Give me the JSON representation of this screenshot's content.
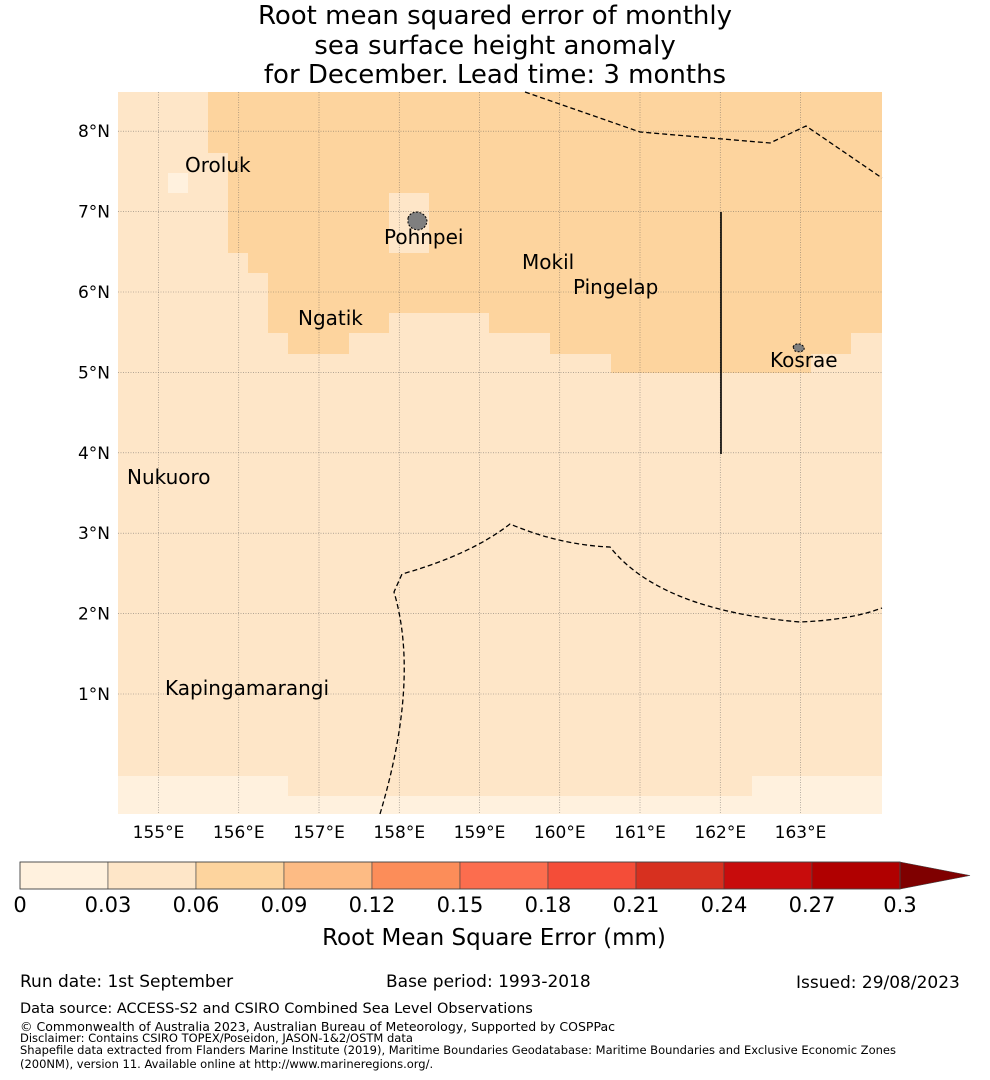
{
  "title": {
    "line1": "Root mean squared error of monthly",
    "line2": "sea surface height anomaly",
    "line3": "for December. Lead time: 3 months"
  },
  "map": {
    "lon_labels": [
      "155°E",
      "156°E",
      "157°E",
      "158°E",
      "159°E",
      "160°E",
      "161°E",
      "162°E",
      "163°E"
    ],
    "lat_labels": [
      "1°N",
      "2°N",
      "3°N",
      "4°N",
      "5°N",
      "6°N",
      "7°N",
      "8°N"
    ],
    "places": {
      "oroluk": "Oroluk",
      "pohnpei": "Pohnpei",
      "mokil": "Mokil",
      "pingelap": "Pingelap",
      "ngatik": "Ngatik",
      "kosrae": "Kosrae",
      "nukuoro": "Nukuoro",
      "kapingamarangi": "Kapingamarangi"
    },
    "colors": {
      "bin_0_003": "#fff1de",
      "bin_003_006": "#fee6c8",
      "bin_006_009": "#fdd49e",
      "land": "#7f7f7f"
    }
  },
  "colorbar": {
    "ticks": [
      "0",
      "0.03",
      "0.06",
      "0.09",
      "0.12",
      "0.15",
      "0.18",
      "0.21",
      "0.24",
      "0.27",
      "0.3"
    ],
    "colors": [
      "#fff1de",
      "#fee6c8",
      "#fdd49e",
      "#fdbb84",
      "#fc8d59",
      "#fc6d4e",
      "#f44d38",
      "#d7301f",
      "#c80c0c",
      "#b00000"
    ],
    "extend_color": "#7f0000",
    "label": "Root Mean Square Error (mm)"
  },
  "info": {
    "run_date": "Run date: 1st September",
    "base_period": "Base period: 1993-2018",
    "issued": "Issued: 29/08/2023"
  },
  "footer": {
    "data_source": "Data source: ACCESS-S2 and CSIRO Combined Sea Level Observations",
    "copyright": "© Commonwealth of Australia 2023, Australian Bureau of Meteorology, Supported by COSPPac",
    "disclaimer": "Disclaimer: Contains CSIRO TOPEX/Poseidon, JASON-1&2/OSTM data",
    "shapefile1": "Shapefile data extracted from Flanders Marine Institute (2019), Maritime Boundaries Geodatabase: Maritime Boundaries and Exclusive Economic Zones",
    "shapefile2": "(200NM), version 11. Available online at http://www.marineregions.org/."
  }
}
